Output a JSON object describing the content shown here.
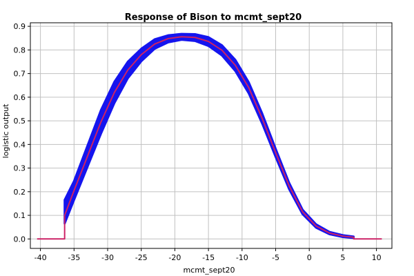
{
  "chart_data": {
    "type": "line",
    "title": "Response of Bison to mcmt_sept20",
    "xlabel": "mcmt_sept20",
    "ylabel": "logistic output",
    "xlim": [
      -41.5,
      12.3
    ],
    "ylim": [
      -0.04,
      0.915
    ],
    "xticks": [
      -40,
      -35,
      -30,
      -25,
      -20,
      -15,
      -10,
      -5,
      0,
      5,
      10
    ],
    "yticks": [
      0.0,
      0.1,
      0.2,
      0.3,
      0.4,
      0.5,
      0.6,
      0.7,
      0.8,
      0.9
    ],
    "ytick_labels": [
      "0.0",
      "0.1",
      "0.2",
      "0.3",
      "0.4",
      "0.5",
      "0.6",
      "0.7",
      "0.8",
      "0.9"
    ],
    "grid": true,
    "series": [
      {
        "role": "mean",
        "color": "#cc2266",
        "x": [
          -40.5,
          -36.4,
          -36.4,
          -35,
          -33,
          -31,
          -29,
          -27,
          -25,
          -23,
          -21,
          -19,
          -17,
          -15,
          -13,
          -11,
          -9,
          -7,
          -5,
          -3,
          -1,
          1,
          3,
          5,
          6.6,
          6.6,
          10.8
        ],
        "y": [
          0.0,
          0.0,
          0.1,
          0.205,
          0.35,
          0.495,
          0.62,
          0.715,
          0.78,
          0.825,
          0.848,
          0.856,
          0.853,
          0.836,
          0.799,
          0.735,
          0.64,
          0.51,
          0.365,
          0.225,
          0.115,
          0.055,
          0.025,
          0.012,
          0.007,
          0.0,
          0.0
        ]
      }
    ],
    "band": {
      "role": "variation",
      "color": "#1515ee",
      "x": [
        -36.4,
        -35,
        -33,
        -31,
        -29,
        -27,
        -25,
        -23,
        -21,
        -19,
        -17,
        -15,
        -13,
        -11,
        -9,
        -7,
        -5,
        -3,
        -1,
        1,
        3,
        5,
        6.6
      ],
      "upper": [
        0.165,
        0.245,
        0.395,
        0.545,
        0.665,
        0.75,
        0.805,
        0.845,
        0.862,
        0.868,
        0.867,
        0.854,
        0.82,
        0.758,
        0.663,
        0.531,
        0.382,
        0.238,
        0.124,
        0.062,
        0.03,
        0.016,
        0.01
      ],
      "lower": [
        0.065,
        0.165,
        0.305,
        0.445,
        0.575,
        0.68,
        0.752,
        0.805,
        0.832,
        0.843,
        0.838,
        0.817,
        0.777,
        0.711,
        0.616,
        0.488,
        0.347,
        0.211,
        0.105,
        0.048,
        0.02,
        0.008,
        0.004
      ]
    }
  }
}
